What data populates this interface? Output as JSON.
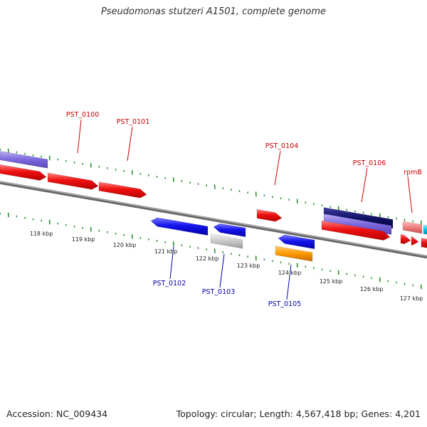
{
  "header": {
    "title": "Pseudomonas stutzeri A1501, complete genome"
  },
  "footer": {
    "accession": "Accession: NC_009434",
    "stats": "Topology: circular; Length: 4,567,418 bp; Genes: 4,201"
  },
  "ruler_labels": [
    "118 kbp",
    "119 kbp",
    "120 kbp",
    "121 kbp",
    "122 kbp",
    "123 kbp",
    "124 kbp",
    "125 kbp",
    "126 kbp",
    "127 kbp"
  ],
  "gene_labels": {
    "top": [
      "PST_0100",
      "PST_0101",
      "PST_0104",
      "PST_0106",
      "rpmB"
    ],
    "bottom": [
      "PST_0102",
      "PST_0103",
      "PST_0105"
    ]
  },
  "colors": {
    "forward": "#ee1111",
    "reverse": "#1111ee",
    "forward_label": "#cc0000",
    "reverse_label": "#0000aa",
    "tick": "#228822",
    "backbone": "#808080"
  }
}
